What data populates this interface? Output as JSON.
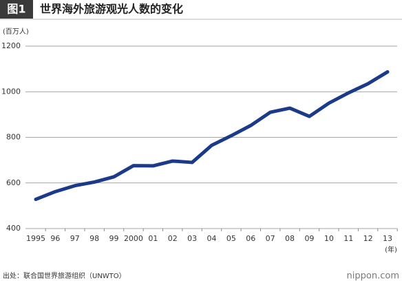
{
  "badge": "图1",
  "brand": "nippon.com",
  "source": "出处：联合国世界旅游组织（UNWTO）",
  "chart_data": {
    "type": "line",
    "title": "世界海外旅游观光人数的变化",
    "y_label": "(百万人)",
    "x_label": "(年)",
    "categories": [
      "1995",
      "96",
      "97",
      "98",
      "99",
      "2000",
      "01",
      "02",
      "03",
      "04",
      "05",
      "06",
      "07",
      "08",
      "09",
      "10",
      "11",
      "12",
      "13"
    ],
    "series": [
      {
        "name": "世界海外旅游观光人数",
        "color": "#1c3a8a",
        "values": [
          528,
          562,
          588,
          604,
          627,
          676,
          675,
          696,
          690,
          765,
          807,
          852,
          910,
          928,
          892,
          950,
          995,
          1035,
          1087
        ]
      }
    ],
    "ylim": [
      400,
      1200
    ],
    "yticks": [
      400,
      600,
      800,
      1000,
      1200
    ],
    "grid": true
  }
}
